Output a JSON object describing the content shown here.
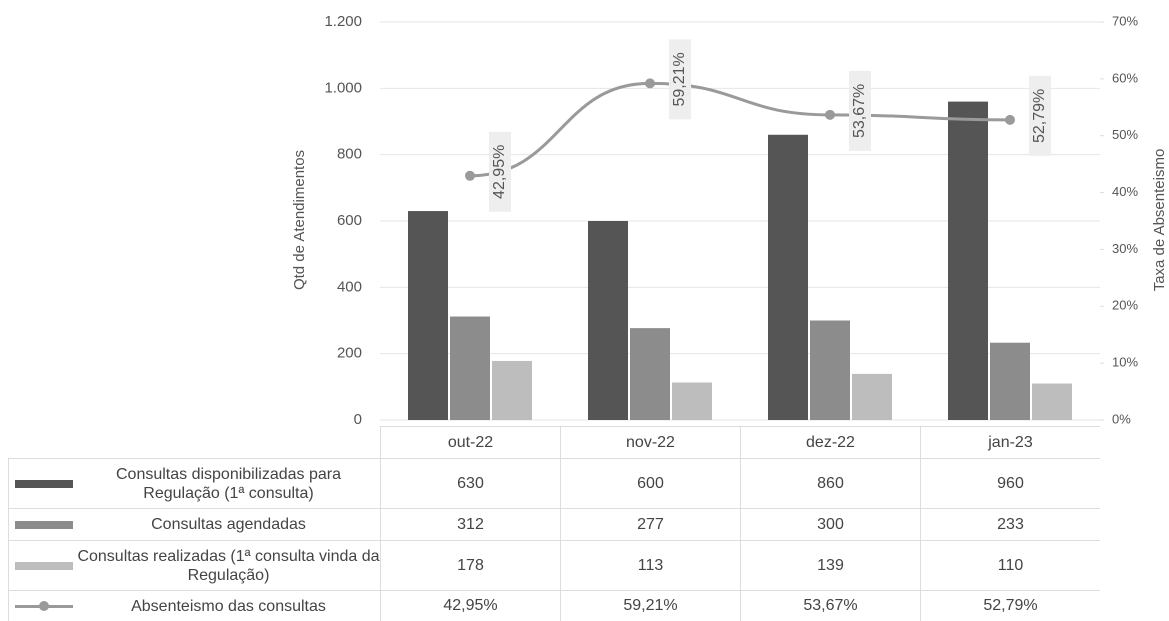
{
  "chart_data": {
    "type": "bar",
    "y_label": "Qtd de Atendimentos",
    "y2_label": "Taxa de Absenteismo",
    "categories": [
      "out-22",
      "nov-22",
      "dez-22",
      "jan-23"
    ],
    "ylim": [
      0,
      1200
    ],
    "yticks": [
      0,
      200,
      400,
      600,
      800,
      {
        "value": 1000,
        "label": "1.000"
      },
      {
        "value": 1200,
        "label": "1.200"
      }
    ],
    "y2lim": [
      0,
      70
    ],
    "y2ticks": [
      {
        "value": 0,
        "label": "0%"
      },
      {
        "value": 10,
        "label": "10%"
      },
      {
        "value": 20,
        "label": "20%"
      },
      {
        "value": 30,
        "label": "30%"
      },
      {
        "value": 40,
        "label": "40%"
      },
      {
        "value": 50,
        "label": "50%"
      },
      {
        "value": 60,
        "label": "60%"
      },
      {
        "value": 70,
        "label": "70%"
      }
    ],
    "grid": true,
    "series": [
      {
        "name": "Consultas disponibilizadas para Regulação (1ª consulta)",
        "color": "#555555",
        "values": [
          630,
          600,
          860,
          960
        ]
      },
      {
        "name": "Consultas agendadas",
        "color": "#8c8c8c",
        "values": [
          312,
          277,
          300,
          233
        ]
      },
      {
        "name": "Consultas realizadas (1ª consulta vinda da Regulação)",
        "color": "#bdbdbd",
        "values": [
          178,
          113,
          139,
          110
        ]
      },
      {
        "name": "Absenteismo das consultas",
        "type": "line",
        "axis": "y2",
        "color": "#9a9a9a",
        "values": [
          42.95,
          59.21,
          53.67,
          52.79
        ],
        "value_labels": [
          "42,95%",
          "59,21%",
          "53,67%",
          "52,79%"
        ]
      }
    ]
  }
}
